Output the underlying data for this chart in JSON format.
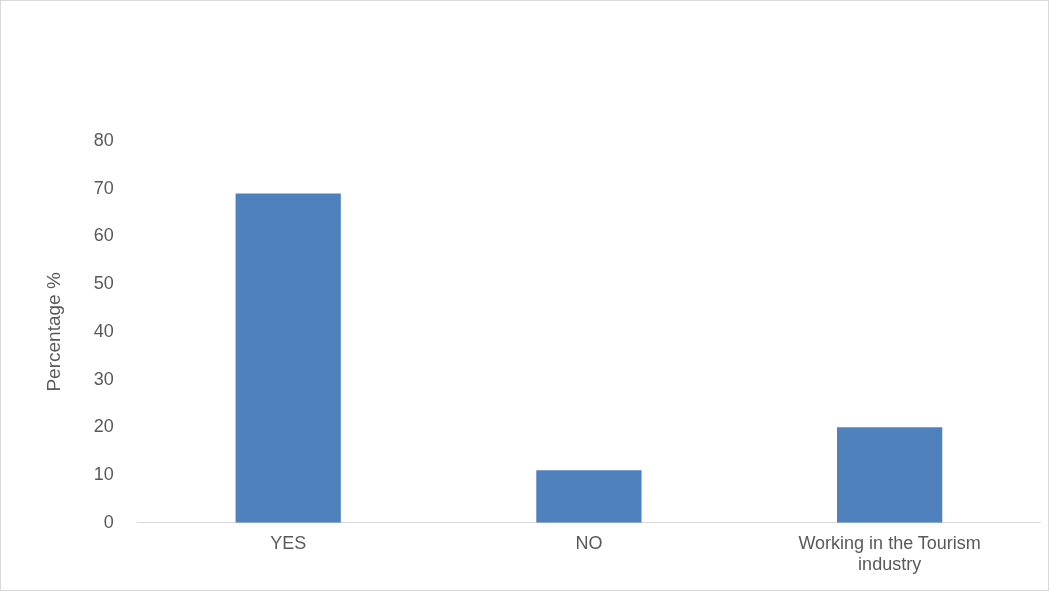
{
  "chart_data": {
    "type": "bar",
    "ylabel": "Percentage %",
    "categories": [
      "YES",
      "NO",
      "Working in the Tourism industry"
    ],
    "values": [
      69,
      11,
      20
    ],
    "color": "#4f81bd",
    "ylim": [
      0,
      80
    ],
    "yticks": [
      0,
      10,
      20,
      30,
      40,
      50,
      60,
      70,
      80
    ],
    "grid": false,
    "legend": false
  }
}
